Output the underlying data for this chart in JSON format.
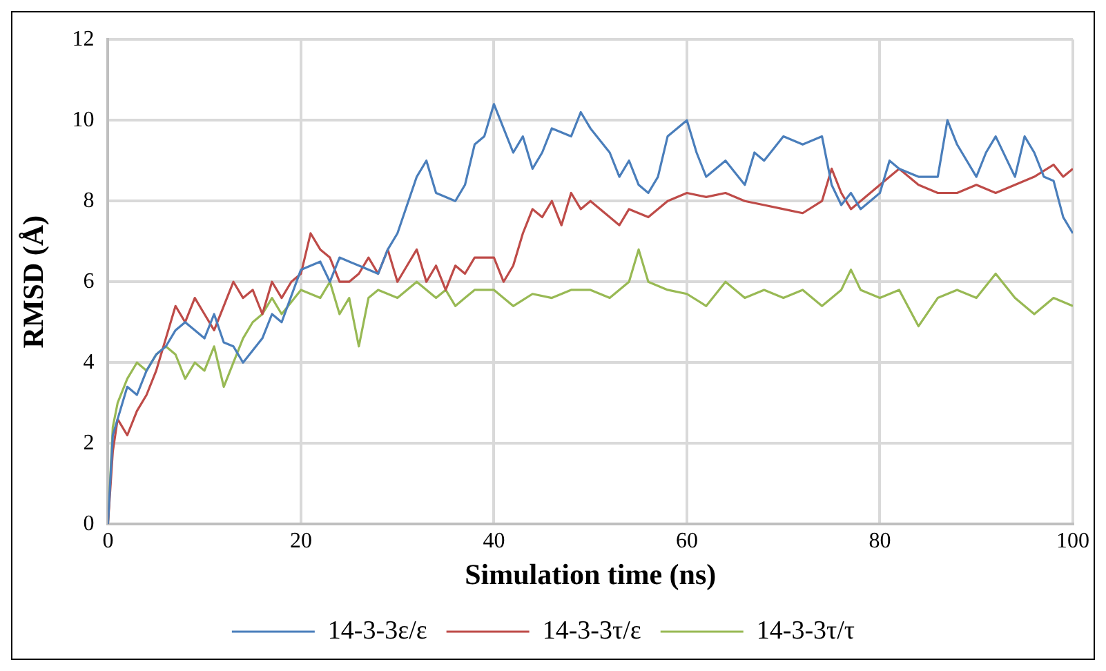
{
  "chart_data": {
    "type": "line",
    "xlabel": "Simulation time (ns)",
    "ylabel": "RMSD (Å)",
    "xlim": [
      0,
      100
    ],
    "xticks": [
      0,
      20,
      40,
      60,
      80,
      100
    ],
    "ylim": [
      0,
      12
    ],
    "yticks": [
      0,
      2,
      4,
      6,
      8,
      10,
      12
    ],
    "grid": true,
    "legend": "bottom",
    "marker": "none",
    "line_style": "solid",
    "series": [
      {
        "name": "14-3-3ε/ε",
        "color": "#4a7ebb",
        "x": [
          0,
          0.5,
          1,
          2,
          3,
          4,
          5,
          6,
          7,
          8,
          10,
          11,
          12,
          13,
          14,
          16,
          17,
          18,
          20,
          22,
          23,
          24,
          26,
          28,
          29,
          30,
          32,
          33,
          34,
          36,
          37,
          38,
          39,
          40,
          41,
          42,
          43,
          44,
          45,
          46,
          48,
          49,
          50,
          52,
          53,
          54,
          55,
          56,
          57,
          58,
          60,
          61,
          62,
          64,
          66,
          67,
          68,
          70,
          72,
          74,
          75,
          76,
          77,
          78,
          80,
          81,
          82,
          84,
          86,
          87,
          88,
          90,
          91,
          92,
          94,
          95,
          96,
          97,
          98,
          99,
          100
        ],
        "values": [
          0,
          2.2,
          2.6,
          3.4,
          3.2,
          3.8,
          4.2,
          4.4,
          4.8,
          5.0,
          4.6,
          5.2,
          4.5,
          4.4,
          4.0,
          4.6,
          5.2,
          5.0,
          6.3,
          6.5,
          6.0,
          6.6,
          6.4,
          6.2,
          6.8,
          7.2,
          8.6,
          9.0,
          8.2,
          8.0,
          8.4,
          9.4,
          9.6,
          10.4,
          9.8,
          9.2,
          9.6,
          8.8,
          9.2,
          9.8,
          9.6,
          10.2,
          9.8,
          9.2,
          8.6,
          9.0,
          8.4,
          8.2,
          8.6,
          9.6,
          10.0,
          9.2,
          8.6,
          9.0,
          8.4,
          9.2,
          9.0,
          9.6,
          9.4,
          9.6,
          8.4,
          7.9,
          8.2,
          7.8,
          8.2,
          9.0,
          8.8,
          8.6,
          8.6,
          10.0,
          9.4,
          8.6,
          9.2,
          9.6,
          8.6,
          9.6,
          9.2,
          8.6,
          8.5,
          7.6,
          7.2
        ]
      },
      {
        "name": "14-3-3τ/ε",
        "color": "#be4b48",
        "x": [
          0,
          0.5,
          1,
          2,
          3,
          4,
          5,
          6,
          7,
          8,
          9,
          10,
          11,
          12,
          13,
          14,
          15,
          16,
          17,
          18,
          19,
          20,
          21,
          22,
          23,
          24,
          25,
          26,
          27,
          28,
          29,
          30,
          31,
          32,
          33,
          34,
          35,
          36,
          37,
          38,
          40,
          41,
          42,
          43,
          44,
          45,
          46,
          47,
          48,
          49,
          50,
          52,
          53,
          54,
          56,
          58,
          60,
          62,
          64,
          66,
          68,
          70,
          72,
          74,
          75,
          76,
          77,
          78,
          80,
          82,
          84,
          86,
          88,
          90,
          92,
          94,
          96,
          98,
          99,
          100
        ],
        "values": [
          0,
          1.8,
          2.6,
          2.2,
          2.8,
          3.2,
          3.8,
          4.6,
          5.4,
          5.0,
          5.6,
          5.2,
          4.8,
          5.4,
          6.0,
          5.6,
          5.8,
          5.2,
          6.0,
          5.6,
          6.0,
          6.2,
          7.2,
          6.8,
          6.6,
          6.0,
          6.0,
          6.2,
          6.6,
          6.2,
          6.8,
          6.0,
          6.4,
          6.8,
          6.0,
          6.4,
          5.8,
          6.4,
          6.2,
          6.6,
          6.6,
          6.0,
          6.4,
          7.2,
          7.8,
          7.6,
          8.0,
          7.4,
          8.2,
          7.8,
          8.0,
          7.6,
          7.4,
          7.8,
          7.6,
          8.0,
          8.2,
          8.1,
          8.2,
          8.0,
          7.9,
          7.8,
          7.7,
          8.0,
          8.8,
          8.2,
          7.8,
          8.0,
          8.4,
          8.8,
          8.4,
          8.2,
          8.2,
          8.4,
          8.2,
          8.4,
          8.6,
          8.9,
          8.6,
          8.8
        ]
      },
      {
        "name": "14-3-3τ/τ",
        "color": "#98b954",
        "x": [
          0,
          0.5,
          1,
          2,
          3,
          4,
          5,
          6,
          7,
          8,
          9,
          10,
          11,
          12,
          13,
          14,
          15,
          16,
          17,
          18,
          20,
          22,
          23,
          24,
          25,
          26,
          27,
          28,
          30,
          32,
          34,
          35,
          36,
          37,
          38,
          40,
          42,
          44,
          46,
          48,
          50,
          52,
          54,
          55,
          56,
          58,
          60,
          62,
          64,
          66,
          68,
          70,
          72,
          74,
          76,
          77,
          78,
          80,
          82,
          84,
          86,
          88,
          90,
          92,
          94,
          96,
          98,
          100
        ],
        "values": [
          0,
          2.4,
          3.0,
          3.6,
          4.0,
          3.8,
          4.2,
          4.4,
          4.2,
          3.6,
          4.0,
          3.8,
          4.4,
          3.4,
          4.0,
          4.6,
          5.0,
          5.2,
          5.6,
          5.2,
          5.8,
          5.6,
          6.0,
          5.2,
          5.6,
          4.4,
          5.6,
          5.8,
          5.6,
          6.0,
          5.6,
          5.8,
          5.4,
          5.6,
          5.8,
          5.8,
          5.4,
          5.7,
          5.6,
          5.8,
          5.8,
          5.6,
          6.0,
          6.8,
          6.0,
          5.8,
          5.7,
          5.4,
          6.0,
          5.6,
          5.8,
          5.6,
          5.8,
          5.4,
          5.8,
          6.3,
          5.8,
          5.6,
          5.8,
          4.9,
          5.6,
          5.8,
          5.6,
          6.2,
          5.6,
          5.2,
          5.6,
          5.4
        ]
      }
    ]
  }
}
